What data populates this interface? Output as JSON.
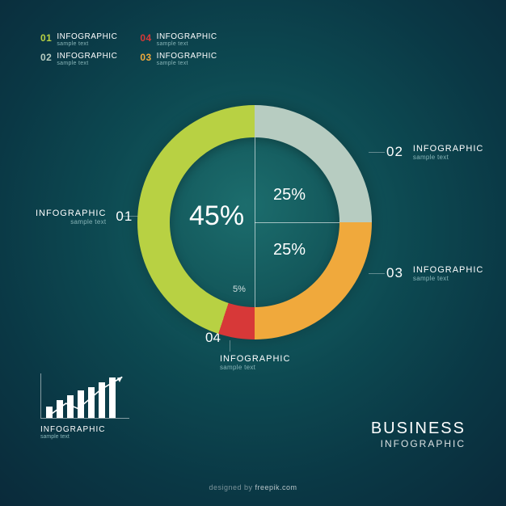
{
  "colors": {
    "seg01": "#b8d143",
    "seg02": "#b7ccc1",
    "seg03": "#f0a93c",
    "seg04": "#d73838",
    "muted": "#88b5b8",
    "white": "#ffffff"
  },
  "legend": {
    "items": [
      {
        "num": "01",
        "color": "#b8d143",
        "title": "INFOGRAPHIC",
        "sub": "sample text"
      },
      {
        "num": "04",
        "color": "#d73838",
        "title": "INFOGRAPHIC",
        "sub": "sample text"
      },
      {
        "num": "02",
        "color": "#b7ccc1",
        "title": "INFOGRAPHIC",
        "sub": "sample text"
      },
      {
        "num": "03",
        "color": "#f0a93c",
        "title": "INFOGRAPHIC",
        "sub": "sample text"
      }
    ]
  },
  "donut": {
    "type": "pie",
    "outer_radius": 145,
    "inner_radius": 105,
    "segments": [
      {
        "id": "02",
        "value": 25,
        "color": "#b7ccc1",
        "start_deg": 0,
        "end_deg": 90
      },
      {
        "id": "03",
        "value": 25,
        "color": "#f0a93c",
        "start_deg": 90,
        "end_deg": 180
      },
      {
        "id": "04",
        "value": 5,
        "color": "#d73838",
        "start_deg": 180,
        "end_deg": 198
      },
      {
        "id": "01",
        "value": 45,
        "color": "#b8d143",
        "start_deg": 198,
        "end_deg": 360
      }
    ],
    "center_labels": {
      "big": "45%",
      "tr": "25%",
      "br": "25%",
      "small": "5%"
    }
  },
  "callouts": {
    "c01": {
      "num": "01",
      "title": "INFOGRAPHIC",
      "sub": "sample text"
    },
    "c02": {
      "num": "02",
      "title": "INFOGRAPHIC",
      "sub": "sample text"
    },
    "c03": {
      "num": "03",
      "title": "INFOGRAPHIC",
      "sub": "sample text"
    },
    "c04": {
      "num": "04",
      "title": "INFOGRAPHIC",
      "sub": "sample text"
    }
  },
  "mini_chart": {
    "type": "bar",
    "bars": [
      14,
      22,
      28,
      34,
      38,
      44,
      50
    ],
    "bar_color": "#ffffff",
    "title": "INFOGRAPHIC",
    "sub": "sample text"
  },
  "footer_title": {
    "line1": "BUSINESS",
    "line2": "INFOGRAPHIC"
  },
  "credit": {
    "prefix": "designed by ",
    "name": "freepik.com"
  }
}
